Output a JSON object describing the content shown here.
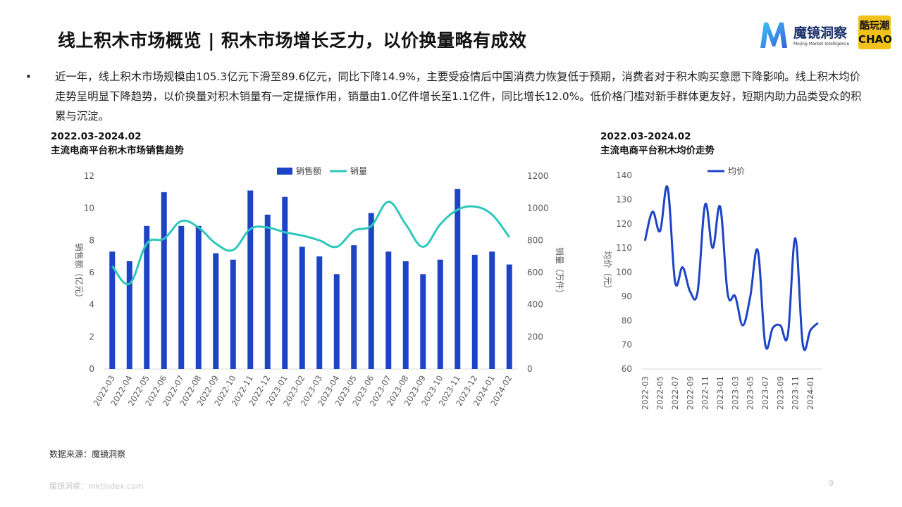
{
  "header": {
    "title": "线上积木市场概览 | 积木市场增长乏力，以价换量略有成效",
    "logo_name": "魔镜洞察",
    "logo_sub": "Mojing Market Intelligence",
    "logo2_line1": "酷玩潮",
    "logo2_line2": "CHAO"
  },
  "summary": {
    "bullet": "•",
    "text": "近一年，线上积木市场规模由105.3亿元下滑至89.6亿元，同比下降14.9%，主要受疫情后中国消费力恢复低于预期，消费者对于积木购买意愿下降影响。线上积木均价走势呈明显下降趋势，以价换量对积木销量有一定提振作用，销量由1.0亿件增长至1.1亿件，同比增长12.0%。低价格门槛对新手群体更友好，短期内助力品类受众的积累与沉淀。"
  },
  "left_chart_header": {
    "period": "2022.03-2024.02",
    "name": "主流电商平台积木市场销售趋势"
  },
  "right_chart_header": {
    "period": "2022.03-2024.02",
    "name": "主流电商平台积木均价走势"
  },
  "source": "数据来源：魔镜洞察",
  "footer": "魔镜洞察：mktindex.com",
  "page_number": "9",
  "colors": {
    "bar": "#1d44c4",
    "volume_line": "#2ec7bb",
    "price_line": "#1d44c4"
  },
  "chart_data": [
    {
      "type": "bar",
      "title": "主流电商平台积木市场销售趋势",
      "categories": [
        "2022-03",
        "2022-04",
        "2022-05",
        "2022-06",
        "2022-07",
        "2022-08",
        "2022-09",
        "2022-10",
        "2022-11",
        "2022-12",
        "2023-01",
        "2023-02",
        "2023-03",
        "2023-04",
        "2023-05",
        "2023-06",
        "2023-07",
        "2023-08",
        "2023-09",
        "2023-10",
        "2023-11",
        "2023-12",
        "2024-01",
        "2024-02"
      ],
      "series": [
        {
          "name": "销售额",
          "type": "bar",
          "axis": "left",
          "values": [
            7.3,
            6.7,
            8.9,
            11.0,
            8.9,
            8.9,
            7.2,
            6.8,
            11.1,
            9.6,
            10.7,
            7.6,
            7.0,
            5.9,
            7.7,
            9.7,
            7.3,
            6.7,
            5.9,
            6.8,
            11.2,
            7.1,
            7.3,
            6.5
          ]
        },
        {
          "name": "销量",
          "type": "line",
          "axis": "right",
          "values": [
            640,
            530,
            780,
            810,
            920,
            880,
            780,
            740,
            870,
            880,
            850,
            830,
            800,
            760,
            860,
            890,
            1040,
            900,
            760,
            900,
            990,
            1010,
            960,
            820
          ]
        }
      ],
      "ylabel_left": "销售额（亿元）",
      "ylabel_right": "销量（万件）",
      "ylim_left": [
        0,
        12
      ],
      "ylim_right": [
        0,
        1200
      ],
      "yticks_left": [
        "0",
        "2",
        "4",
        "6",
        "8",
        "10",
        "12"
      ],
      "yticks_right": [
        "0",
        "200",
        "400",
        "600",
        "800",
        "1000",
        "1200"
      ],
      "legend_position": "top-center",
      "grid": false
    },
    {
      "type": "line",
      "title": "主流电商平台积木均价走势",
      "x": [
        "2022-03",
        "2022-04",
        "2022-05",
        "2022-06",
        "2022-07",
        "2022-08",
        "2022-09",
        "2022-10",
        "2022-11",
        "2022-12",
        "2023-01",
        "2023-02",
        "2023-03",
        "2023-04",
        "2023-05",
        "2023-06",
        "2023-07",
        "2023-08",
        "2023-09",
        "2023-10",
        "2023-11",
        "2023-12",
        "2024-01",
        "2024-02"
      ],
      "xtick_labels": [
        "2022-03",
        "2022-05",
        "2022-07",
        "2022-09",
        "2022-11",
        "2023-01",
        "2023-03",
        "2023-05",
        "2023-07",
        "2023-09",
        "2023-11",
        "2024-01"
      ],
      "series": [
        {
          "name": "均价",
          "values": [
            113,
            125,
            117,
            135,
            96,
            102,
            92,
            92,
            128,
            110,
            127,
            91,
            90,
            78,
            90,
            109,
            70,
            77,
            78,
            74,
            114,
            70,
            76,
            79
          ]
        }
      ],
      "ylabel": "均价（元）",
      "ylim": [
        60,
        140
      ],
      "yticks": [
        "60",
        "70",
        "80",
        "90",
        "100",
        "110",
        "120",
        "130",
        "140"
      ],
      "legend_position": "top-center",
      "grid": false
    }
  ]
}
